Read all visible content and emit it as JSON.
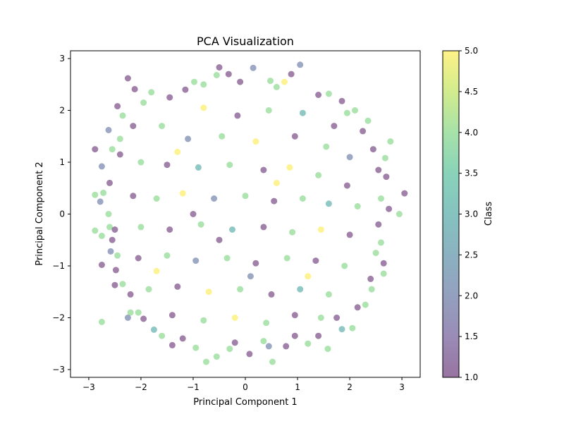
{
  "chart_data": {
    "type": "scatter",
    "title": "PCA Visualization",
    "xlabel": "Principal Component 1",
    "ylabel": "Principal Component 2",
    "xlim": [
      -3.35,
      3.35
    ],
    "ylim": [
      -3.15,
      3.15
    ],
    "xticks": [
      -3,
      -2,
      -1,
      0,
      1,
      2,
      3
    ],
    "yticks": [
      -3,
      -2,
      -1,
      0,
      1,
      2,
      3
    ],
    "grid": false,
    "marker_alpha": 0.5,
    "colormap": "viridis",
    "colorbar": {
      "label": "Class",
      "range": [
        1.0,
        5.0
      ],
      "ticks": [
        "1.0",
        "1.5",
        "2.0",
        "2.5",
        "3.0",
        "3.5",
        "4.0",
        "4.5",
        "5.0"
      ]
    },
    "classes": [
      1,
      2,
      3,
      4,
      5
    ],
    "class_colors": {
      "1": "#440154",
      "2": "#3b528b",
      "3": "#21918c",
      "4": "#5ec962",
      "5": "#fde725"
    },
    "points": [
      [
        -2.25,
        2.62,
        1
      ],
      [
        -2.12,
        2.41,
        1
      ],
      [
        -2.62,
        1.62,
        2
      ],
      [
        -2.88,
        1.25,
        1
      ],
      [
        -2.75,
        0.92,
        2
      ],
      [
        -2.88,
        0.37,
        4
      ],
      [
        -2.78,
        0.24,
        2
      ],
      [
        -2.72,
        0.41,
        4
      ],
      [
        -2.88,
        -0.32,
        4
      ],
      [
        -2.75,
        -0.42,
        4
      ],
      [
        -2.75,
        -0.98,
        1
      ],
      [
        -2.58,
        -0.72,
        2
      ],
      [
        -2.75,
        -2.08,
        4
      ],
      [
        -2.25,
        -2.0,
        2
      ],
      [
        -2.2,
        -1.9,
        4
      ],
      [
        -2.5,
        -1.37,
        1
      ],
      [
        -1.75,
        -2.23,
        3
      ],
      [
        -1.4,
        -2.53,
        1
      ],
      [
        -0.75,
        -2.85,
        4
      ],
      [
        -0.55,
        -2.75,
        4
      ],
      [
        -0.3,
        -2.6,
        4
      ],
      [
        0.08,
        -2.7,
        1
      ],
      [
        0.52,
        -2.85,
        4
      ],
      [
        0.45,
        -2.55,
        2
      ],
      [
        0.78,
        -2.55,
        1
      ],
      [
        1.2,
        -2.5,
        4
      ],
      [
        1.58,
        -2.6,
        4
      ],
      [
        1.85,
        -2.22,
        3
      ],
      [
        2.05,
        -2.2,
        4
      ],
      [
        2.3,
        -1.75,
        4
      ],
      [
        2.42,
        -1.45,
        4
      ],
      [
        2.65,
        -1.15,
        4
      ],
      [
        2.65,
        -0.95,
        1
      ],
      [
        2.6,
        -0.55,
        4
      ],
      [
        2.95,
        0.0,
        4
      ],
      [
        2.75,
        0.1,
        1
      ],
      [
        3.05,
        0.4,
        1
      ],
      [
        2.7,
        0.72,
        1
      ],
      [
        2.78,
        1.4,
        4
      ],
      [
        2.68,
        1.08,
        4
      ],
      [
        2.35,
        1.8,
        4
      ],
      [
        2.1,
        2.0,
        4
      ],
      [
        1.85,
        2.18,
        1
      ],
      [
        1.6,
        2.32,
        4
      ],
      [
        1.05,
        2.88,
        2
      ],
      [
        0.88,
        2.7,
        1
      ],
      [
        0.75,
        2.55,
        5
      ],
      [
        0.48,
        2.57,
        4
      ],
      [
        0.15,
        2.82,
        2
      ],
      [
        -0.5,
        2.83,
        1
      ],
      [
        -0.32,
        2.7,
        1
      ],
      [
        -0.55,
        2.68,
        4
      ],
      [
        -0.98,
        2.55,
        4
      ],
      [
        -1.15,
        2.4,
        1
      ],
      [
        -1.8,
        2.35,
        4
      ],
      [
        -2.45,
        2.08,
        1
      ],
      [
        -2.35,
        1.9,
        4
      ],
      [
        -2.4,
        1.45,
        4
      ],
      [
        -2.55,
        1.25,
        4
      ],
      [
        -2.6,
        0.6,
        1
      ],
      [
        -2.6,
        -0.25,
        4
      ],
      [
        -2.5,
        -0.3,
        1
      ],
      [
        -2.62,
        0.0,
        4
      ],
      [
        -2.55,
        -0.5,
        1
      ],
      [
        -2.45,
        -0.8,
        4
      ],
      [
        -2.48,
        -1.08,
        1
      ],
      [
        -2.35,
        -1.35,
        4
      ],
      [
        -2.2,
        -1.55,
        1
      ],
      [
        -2.05,
        -1.9,
        4
      ],
      [
        -1.95,
        -2.02,
        1
      ],
      [
        -1.6,
        -2.35,
        4
      ],
      [
        -1.2,
        -2.4,
        1
      ],
      [
        -0.95,
        -2.58,
        4
      ],
      [
        -0.2,
        -2.48,
        1
      ],
      [
        0.35,
        -2.45,
        4
      ],
      [
        0.95,
        -2.35,
        1
      ],
      [
        1.4,
        -2.35,
        1
      ],
      [
        1.75,
        -2.0,
        1
      ],
      [
        2.15,
        -1.8,
        1
      ],
      [
        2.4,
        -1.25,
        1
      ],
      [
        2.5,
        -0.75,
        4
      ],
      [
        2.55,
        -0.2,
        1
      ],
      [
        2.6,
        0.3,
        4
      ],
      [
        2.55,
        0.85,
        1
      ],
      [
        2.45,
        1.25,
        1
      ],
      [
        2.25,
        1.6,
        1
      ],
      [
        1.95,
        1.95,
        4
      ],
      [
        1.4,
        2.3,
        1
      ],
      [
        0.6,
        2.45,
        4
      ],
      [
        -0.1,
        2.55,
        1
      ],
      [
        -0.8,
        2.5,
        4
      ],
      [
        -1.45,
        2.25,
        1
      ],
      [
        -1.95,
        2.15,
        4
      ],
      [
        -2.15,
        1.7,
        1
      ],
      [
        -2.4,
        1.15,
        1
      ],
      [
        -0.8,
        2.05,
        5
      ],
      [
        -0.15,
        1.9,
        1
      ],
      [
        0.45,
        2.0,
        4
      ],
      [
        1.1,
        1.95,
        3
      ],
      [
        1.7,
        1.7,
        1
      ],
      [
        -1.6,
        1.7,
        4
      ],
      [
        -1.1,
        1.45,
        2
      ],
      [
        -0.45,
        1.5,
        4
      ],
      [
        0.2,
        1.4,
        5
      ],
      [
        0.95,
        1.5,
        1
      ],
      [
        1.55,
        1.3,
        4
      ],
      [
        2.0,
        1.1,
        2
      ],
      [
        -2.0,
        1.0,
        4
      ],
      [
        -1.5,
        0.95,
        1
      ],
      [
        -0.9,
        0.9,
        3
      ],
      [
        -0.3,
        0.95,
        4
      ],
      [
        0.35,
        0.85,
        1
      ],
      [
        0.85,
        0.9,
        5
      ],
      [
        1.4,
        0.75,
        4
      ],
      [
        1.95,
        0.55,
        1
      ],
      [
        -2.15,
        0.35,
        1
      ],
      [
        -1.7,
        0.3,
        4
      ],
      [
        -1.2,
        0.4,
        5
      ],
      [
        -0.6,
        0.3,
        2
      ],
      [
        0.0,
        0.35,
        4
      ],
      [
        0.55,
        0.25,
        1
      ],
      [
        1.1,
        0.3,
        4
      ],
      [
        1.6,
        0.2,
        3
      ],
      [
        2.15,
        0.15,
        4
      ],
      [
        -2.0,
        -0.25,
        4
      ],
      [
        -1.45,
        -0.3,
        1
      ],
      [
        -0.85,
        -0.2,
        4
      ],
      [
        -0.25,
        -0.3,
        3
      ],
      [
        0.35,
        -0.25,
        1
      ],
      [
        0.9,
        -0.35,
        4
      ],
      [
        1.45,
        -0.3,
        5
      ],
      [
        2.0,
        -0.4,
        1
      ],
      [
        -2.05,
        -0.85,
        1
      ],
      [
        -1.5,
        -0.8,
        4
      ],
      [
        -0.95,
        -0.9,
        2
      ],
      [
        -0.35,
        -0.85,
        4
      ],
      [
        0.2,
        -0.95,
        1
      ],
      [
        0.8,
        -0.85,
        4
      ],
      [
        1.35,
        -0.9,
        1
      ],
      [
        1.9,
        -1.0,
        4
      ],
      [
        -1.85,
        -1.45,
        4
      ],
      [
        -1.3,
        -1.4,
        1
      ],
      [
        -0.7,
        -1.5,
        5
      ],
      [
        -0.1,
        -1.45,
        4
      ],
      [
        0.5,
        -1.55,
        1
      ],
      [
        1.05,
        -1.45,
        3
      ],
      [
        1.6,
        -1.55,
        4
      ],
      [
        -1.4,
        -1.95,
        1
      ],
      [
        -0.8,
        -2.05,
        4
      ],
      [
        -0.2,
        -2.0,
        5
      ],
      [
        0.4,
        -2.1,
        4
      ],
      [
        0.95,
        -1.95,
        1
      ],
      [
        1.45,
        -2.0,
        4
      ],
      [
        -1.0,
        0.0,
        1
      ],
      [
        0.6,
        0.6,
        5
      ],
      [
        -0.5,
        -0.5,
        1
      ],
      [
        1.2,
        -1.2,
        5
      ],
      [
        -1.3,
        1.2,
        5
      ],
      [
        0.1,
        -1.2,
        2
      ],
      [
        -1.7,
        -1.1,
        5
      ]
    ]
  }
}
